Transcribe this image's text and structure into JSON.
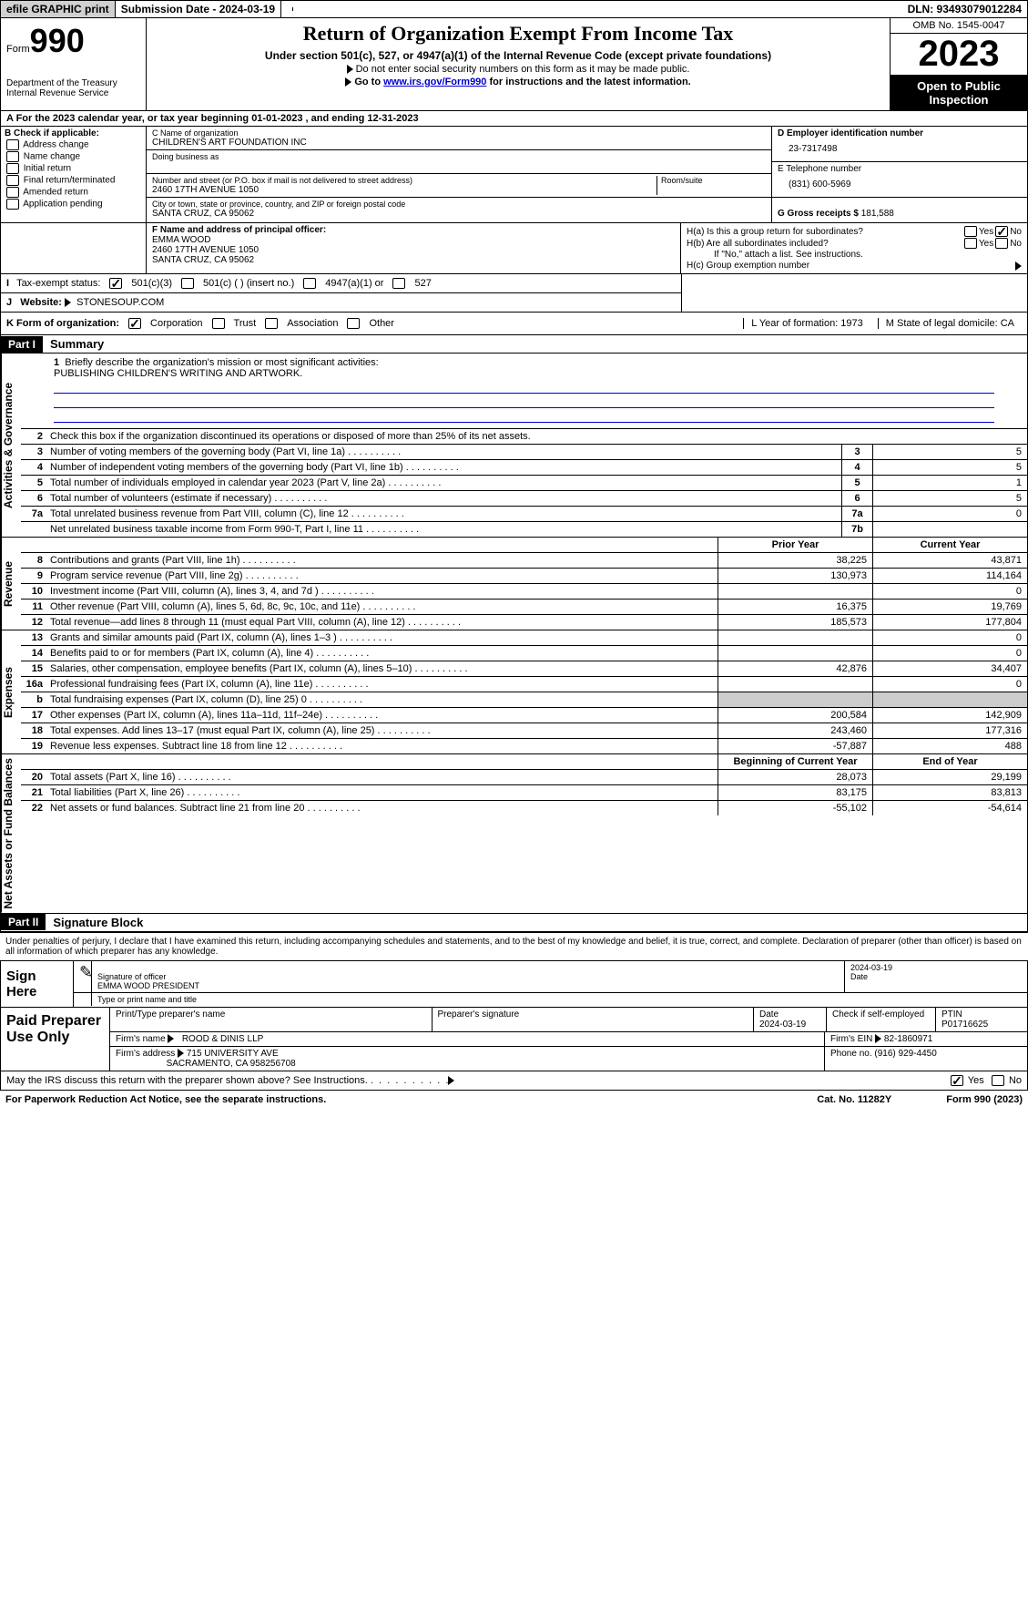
{
  "topbar": {
    "efile": "efile GRAPHIC print",
    "submission": "Submission Date - 2024-03-19",
    "dln": "DLN: 93493079012284"
  },
  "header": {
    "form_label": "Form",
    "form_num": "990",
    "dept": "Department of the Treasury Internal Revenue Service",
    "title": "Return of Organization Exempt From Income Tax",
    "subtitle": "Under section 501(c), 527, or 4947(a)(1) of the Internal Revenue Code (except private foundations)",
    "sub1": "Do not enter social security numbers on this form as it may be made public.",
    "sub2_pre": "Go to ",
    "sub2_link": "www.irs.gov/Form990",
    "sub2_post": " for instructions and the latest information.",
    "omb": "OMB No. 1545-0047",
    "year": "2023",
    "inspect": "Open to Public Inspection"
  },
  "taxyear": "A For the 2023 calendar year, or tax year beginning 01-01-2023    , and ending 12-31-2023",
  "colB": {
    "hdr": "B Check if applicable:",
    "items": [
      "Address change",
      "Name change",
      "Initial return",
      "Final return/terminated",
      "Amended return",
      "Application pending"
    ]
  },
  "colC": {
    "name_lbl": "C Name of organization",
    "name": "CHILDREN'S ART FOUNDATION INC",
    "dba_lbl": "Doing business as",
    "addr_lbl": "Number and street (or P.O. box if mail is not delivered to street address)",
    "addr": "2460 17TH AVENUE 1050",
    "room_lbl": "Room/suite",
    "city_lbl": "City or town, state or province, country, and ZIP or foreign postal code",
    "city": "SANTA CRUZ, CA  95062"
  },
  "colD": {
    "ein_lbl": "D Employer identification number",
    "ein": "23-7317498",
    "tel_lbl": "E Telephone number",
    "tel": "(831) 600-5969",
    "gross_lbl": "G Gross receipts $",
    "gross": "181,588"
  },
  "f": {
    "lbl": "F  Name and address of principal officer:",
    "name": "EMMA WOOD",
    "addr1": "2460 17TH AVENUE 1050",
    "addr2": "SANTA CRUZ, CA  95062"
  },
  "h": {
    "a": "H(a)  Is this a group return for subordinates?",
    "b": "H(b)  Are all subordinates included?",
    "b2": "If \"No,\" attach a list. See instructions.",
    "c": "H(c)  Group exemption number",
    "yes": "Yes",
    "no": "No"
  },
  "i": {
    "lbl": "Tax-exempt status:",
    "o1": "501(c)(3)",
    "o2": "501(c) (  ) (insert no.)",
    "o3": "4947(a)(1) or",
    "o4": "527"
  },
  "j": {
    "lbl": "Website:",
    "val": "STONESOUP.COM"
  },
  "k": {
    "lbl": "K Form of organization:",
    "o1": "Corporation",
    "o2": "Trust",
    "o3": "Association",
    "o4": "Other"
  },
  "l": "L Year of formation: 1973",
  "m": "M State of legal domicile: CA",
  "part1": {
    "num": "Part I",
    "title": "Summary"
  },
  "mission": {
    "lbl": "Briefly describe the organization's mission or most significant activities:",
    "text": "PUBLISHING CHILDREN'S WRITING AND ARTWORK."
  },
  "line2": "Check this box      if the organization discontinued its operations or disposed of more than 25% of its net assets.",
  "side": {
    "ag": "Activities & Governance",
    "rev": "Revenue",
    "exp": "Expenses",
    "na": "Net Assets or Fund Balances"
  },
  "gov": [
    {
      "n": "3",
      "d": "Number of voting members of the governing body (Part VI, line 1a)",
      "b": "3",
      "v": "5"
    },
    {
      "n": "4",
      "d": "Number of independent voting members of the governing body (Part VI, line 1b)",
      "b": "4",
      "v": "5"
    },
    {
      "n": "5",
      "d": "Total number of individuals employed in calendar year 2023 (Part V, line 2a)",
      "b": "5",
      "v": "1"
    },
    {
      "n": "6",
      "d": "Total number of volunteers (estimate if necessary)",
      "b": "6",
      "v": "5"
    },
    {
      "n": "7a",
      "d": "Total unrelated business revenue from Part VIII, column (C), line 12",
      "b": "7a",
      "v": "0"
    },
    {
      "n": "",
      "d": "Net unrelated business taxable income from Form 990-T, Part I, line 11",
      "b": "7b",
      "v": ""
    }
  ],
  "cols": {
    "prior": "Prior Year",
    "current": "Current Year",
    "boy": "Beginning of Current Year",
    "eoy": "End of Year"
  },
  "rev": [
    {
      "n": "8",
      "d": "Contributions and grants (Part VIII, line 1h)",
      "p": "38,225",
      "c": "43,871"
    },
    {
      "n": "9",
      "d": "Program service revenue (Part VIII, line 2g)",
      "p": "130,973",
      "c": "114,164"
    },
    {
      "n": "10",
      "d": "Investment income (Part VIII, column (A), lines 3, 4, and 7d )",
      "p": "",
      "c": "0"
    },
    {
      "n": "11",
      "d": "Other revenue (Part VIII, column (A), lines 5, 6d, 8c, 9c, 10c, and 11e)",
      "p": "16,375",
      "c": "19,769"
    },
    {
      "n": "12",
      "d": "Total revenue—add lines 8 through 11 (must equal Part VIII, column (A), line 12)",
      "p": "185,573",
      "c": "177,804"
    }
  ],
  "exp": [
    {
      "n": "13",
      "d": "Grants and similar amounts paid (Part IX, column (A), lines 1–3 )",
      "p": "",
      "c": "0"
    },
    {
      "n": "14",
      "d": "Benefits paid to or for members (Part IX, column (A), line 4)",
      "p": "",
      "c": "0"
    },
    {
      "n": "15",
      "d": "Salaries, other compensation, employee benefits (Part IX, column (A), lines 5–10)",
      "p": "42,876",
      "c": "34,407"
    },
    {
      "n": "16a",
      "d": "Professional fundraising fees (Part IX, column (A), line 11e)",
      "p": "",
      "c": "0"
    },
    {
      "n": "b",
      "d": "Total fundraising expenses (Part IX, column (D), line 25) 0",
      "p": "shade",
      "c": "shade"
    },
    {
      "n": "17",
      "d": "Other expenses (Part IX, column (A), lines 11a–11d, 11f–24e)",
      "p": "200,584",
      "c": "142,909"
    },
    {
      "n": "18",
      "d": "Total expenses. Add lines 13–17 (must equal Part IX, column (A), line 25)",
      "p": "243,460",
      "c": "177,316"
    },
    {
      "n": "19",
      "d": "Revenue less expenses. Subtract line 18 from line 12",
      "p": "-57,887",
      "c": "488"
    }
  ],
  "na": [
    {
      "n": "20",
      "d": "Total assets (Part X, line 16)",
      "p": "28,073",
      "c": "29,199"
    },
    {
      "n": "21",
      "d": "Total liabilities (Part X, line 26)",
      "p": "83,175",
      "c": "83,813"
    },
    {
      "n": "22",
      "d": "Net assets or fund balances. Subtract line 21 from line 20",
      "p": "-55,102",
      "c": "-54,614"
    }
  ],
  "part2": {
    "num": "Part II",
    "title": "Signature Block"
  },
  "sigtext": "Under penalties of perjury, I declare that I have examined this return, including accompanying schedules and statements, and to the best of my knowledge and belief, it is true, correct, and complete. Declaration of preparer (other than officer) is based on all information of which preparer has any knowledge.",
  "sign": {
    "here": "Sign Here",
    "sig_lbl": "Signature of officer",
    "officer": "EMMA WOOD  PRESIDENT",
    "date_lbl": "Date",
    "date": "2024-03-19",
    "type_lbl": "Type or print name and title"
  },
  "prep": {
    "title": "Paid Preparer Use Only",
    "name_lbl": "Print/Type preparer's name",
    "sig_lbl": "Preparer's signature",
    "date_lbl": "Date",
    "date": "2024-03-19",
    "self_lbl": "Check        if self-employed",
    "ptin_lbl": "PTIN",
    "ptin": "P01716625",
    "firm_name_lbl": "Firm's name",
    "firm_name": "ROOD & DINIS LLP",
    "firm_ein_lbl": "Firm's EIN",
    "firm_ein": "82-1860971",
    "firm_addr_lbl": "Firm's address",
    "firm_addr": "715 UNIVERSITY AVE",
    "firm_addr2": "SACRAMENTO, CA  958256708",
    "phone_lbl": "Phone no.",
    "phone": "(916) 929-4450"
  },
  "discuss": "May the IRS discuss this return with the preparer shown above? See Instructions.",
  "footer": {
    "pra": "For Paperwork Reduction Act Notice, see the separate instructions.",
    "cat": "Cat. No. 11282Y",
    "form": "Form 990 (2023)"
  }
}
